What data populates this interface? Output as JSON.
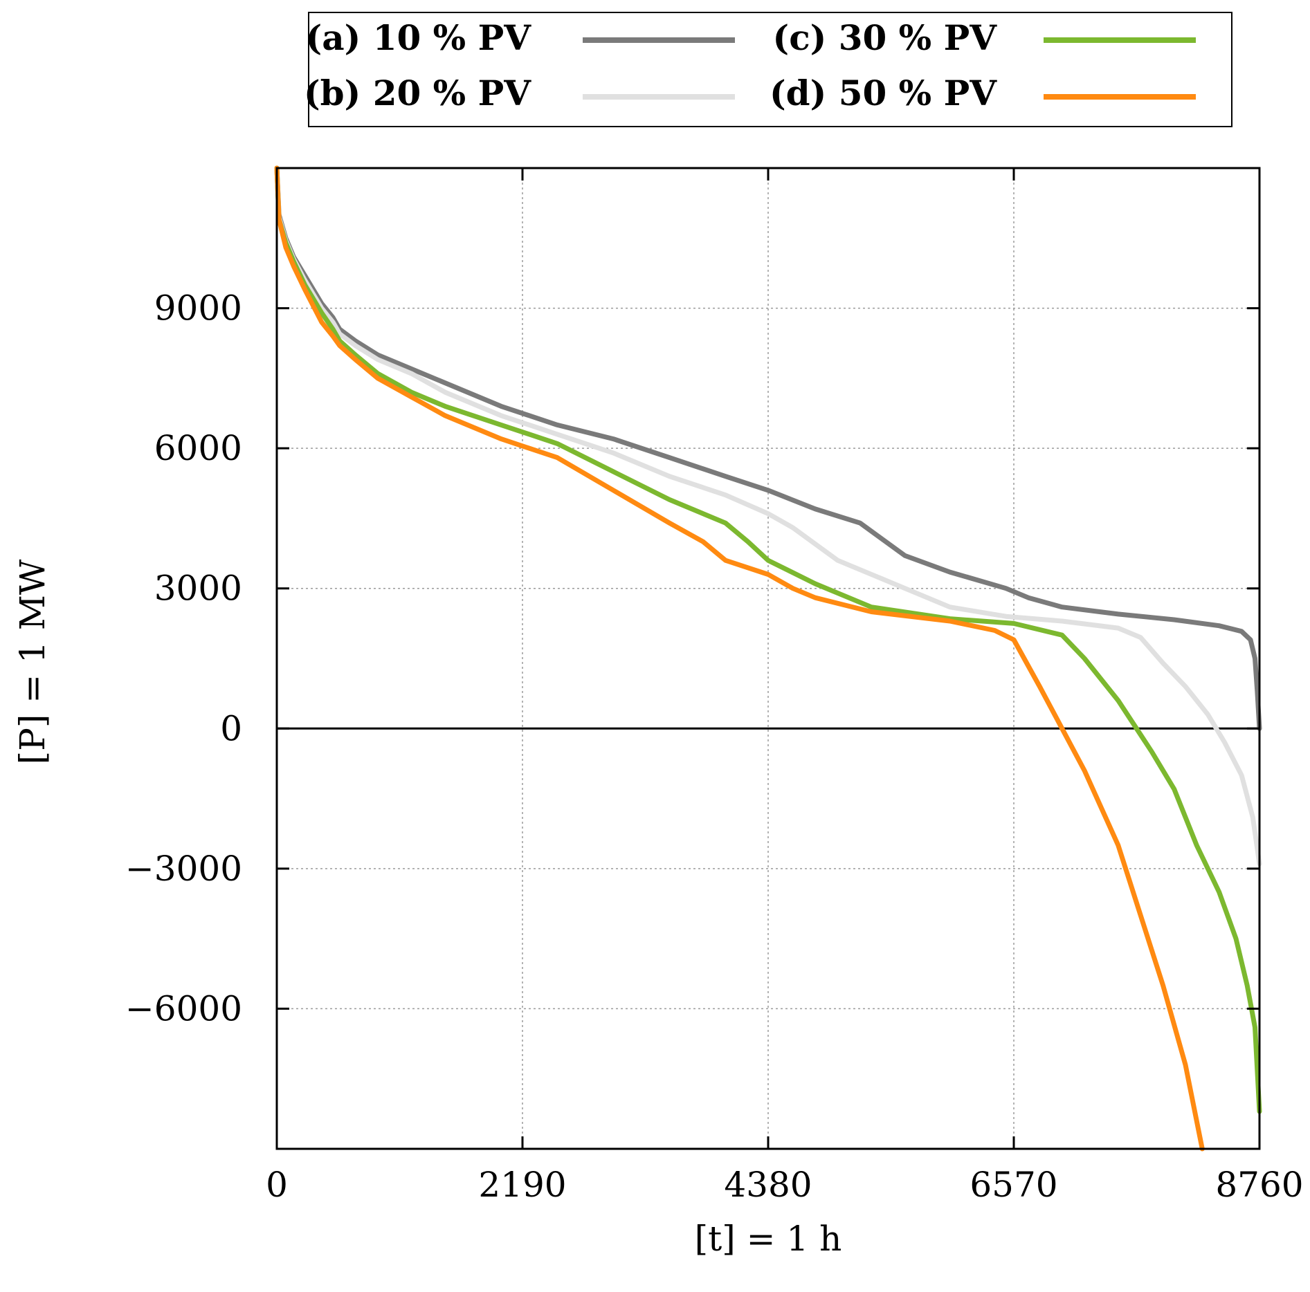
{
  "chart_data": {
    "type": "line",
    "xlabel": "[t] = 1 h",
    "ylabel": "[P] = 1 MW",
    "xlim": [
      0,
      8760
    ],
    "ylim": [
      -9000,
      12000
    ],
    "xticks": [
      0,
      2190,
      4380,
      6570,
      8760
    ],
    "xtick_labels": [
      "0",
      "2190",
      "4380",
      "6570",
      "8760"
    ],
    "yticks": [
      -6000,
      -3000,
      0,
      3000,
      6000,
      9000
    ],
    "ytick_labels": [
      "−6000",
      "−3000",
      "0",
      "3000",
      "6000",
      "9000"
    ],
    "grid": true,
    "legend_position": "top",
    "series": [
      {
        "name": "(a) 10 % PV",
        "color": "#7a7a7a",
        "x": [
          0,
          20,
          80,
          150,
          250,
          400,
          500,
          560,
          700,
          900,
          1200,
          1500,
          2000,
          2500,
          3000,
          3500,
          4000,
          4380,
          4800,
          5200,
          5400,
          5600,
          6000,
          6500,
          6700,
          7000,
          7500,
          8000,
          8400,
          8600,
          8680,
          8720,
          8740,
          8760
        ],
        "y": [
          12000,
          11000,
          10500,
          10100,
          9700,
          9100,
          8800,
          8550,
          8300,
          8000,
          7700,
          7400,
          6900,
          6500,
          6200,
          5800,
          5400,
          5100,
          4700,
          4400,
          4050,
          3700,
          3350,
          3000,
          2800,
          2600,
          2450,
          2330,
          2200,
          2080,
          1900,
          1500,
          800,
          0
        ]
      },
      {
        "name": "(b) 20 % PV",
        "color": "#e0e0e0",
        "x": [
          0,
          20,
          80,
          150,
          250,
          400,
          500,
          560,
          700,
          900,
          1200,
          1500,
          2000,
          2500,
          3000,
          3500,
          4000,
          4380,
          4600,
          5000,
          5600,
          6000,
          6500,
          7000,
          7500,
          7700,
          7900,
          8100,
          8300,
          8450,
          8600,
          8700,
          8760
        ],
        "y": [
          12000,
          10950,
          10450,
          10050,
          9600,
          9000,
          8700,
          8450,
          8200,
          7900,
          7600,
          7200,
          6700,
          6300,
          5900,
          5400,
          5000,
          4600,
          4300,
          3600,
          3000,
          2600,
          2400,
          2300,
          2150,
          1950,
          1400,
          900,
          300,
          -300,
          -1000,
          -1900,
          -2900
        ]
      },
      {
        "name": "(c) 30 % PV",
        "color": "#7cb82f",
        "x": [
          0,
          20,
          80,
          150,
          250,
          400,
          500,
          560,
          700,
          900,
          1200,
          1500,
          2000,
          2500,
          3000,
          3500,
          4000,
          4200,
          4380,
          4800,
          5300,
          6000,
          6570,
          7000,
          7200,
          7500,
          7800,
          8000,
          8200,
          8400,
          8550,
          8650,
          8720,
          8760
        ],
        "y": [
          12000,
          10900,
          10400,
          10000,
          9500,
          8900,
          8550,
          8300,
          8000,
          7600,
          7200,
          6900,
          6500,
          6100,
          5500,
          4900,
          4400,
          4000,
          3600,
          3100,
          2600,
          2350,
          2250,
          2000,
          1500,
          600,
          -500,
          -1300,
          -2500,
          -3500,
          -4500,
          -5500,
          -6400,
          -8200
        ]
      },
      {
        "name": "(d) 50 % PV",
        "color": "#ff8a11",
        "x": [
          0,
          20,
          80,
          150,
          250,
          400,
          500,
          560,
          700,
          900,
          1200,
          1500,
          2000,
          2500,
          3000,
          3500,
          3800,
          4000,
          4380,
          4600,
          4800,
          5300,
          6000,
          6400,
          6570,
          6800,
          7000,
          7200,
          7500,
          7700,
          7900,
          8100,
          8250
        ],
        "y": [
          12000,
          10900,
          10300,
          9900,
          9400,
          8700,
          8400,
          8200,
          7900,
          7500,
          7100,
          6700,
          6200,
          5800,
          5100,
          4400,
          4000,
          3600,
          3300,
          3000,
          2800,
          2500,
          2300,
          2100,
          1900,
          900,
          0,
          -900,
          -2500,
          -4000,
          -5500,
          -7200,
          -9000
        ]
      }
    ]
  }
}
